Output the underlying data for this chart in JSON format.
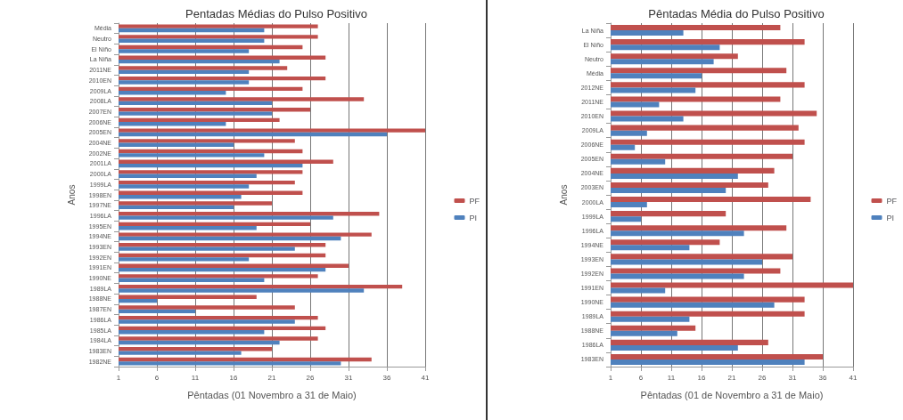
{
  "chart_data": [
    {
      "type": "bar",
      "orientation": "horizontal",
      "title": "Pentadas Médias do Pulso Positivo",
      "xlabel": "Pêntadas (01 Novembro a 31 de Maio)",
      "ylabel": "Anos",
      "grid": "x",
      "legend": "right",
      "xlim": [
        1,
        41
      ],
      "xticks": [
        1,
        6,
        11,
        16,
        21,
        26,
        31,
        36,
        41
      ],
      "categories": [
        "Média",
        "Neutro",
        "El Niño",
        "La Niña",
        "2011NE",
        "2010EN",
        "2009LA",
        "2008LA",
        "2007EN",
        "2006NE",
        "2005EN",
        "2004NE",
        "2002NE",
        "2001LA",
        "2000LA",
        "1999LA",
        "1998EN",
        "1997NE",
        "1996LA",
        "1995EN",
        "1994NE",
        "1993EN",
        "1992EN",
        "1991EN",
        "1990NE",
        "1989LA",
        "1988NE",
        "1987EN",
        "1986LA",
        "1985LA",
        "1984LA",
        "1983EN",
        "1982NE"
      ],
      "series": [
        {
          "name": "PF",
          "color": "#c0504d",
          "values": [
            27,
            27,
            25,
            28,
            23,
            28,
            25,
            33,
            26,
            22,
            41,
            24,
            25,
            29,
            25,
            24,
            25,
            21,
            35,
            26,
            34,
            28,
            28,
            31,
            27,
            38,
            19,
            24,
            27,
            28,
            27,
            21,
            34
          ]
        },
        {
          "name": "PI",
          "color": "#4f81bd",
          "values": [
            20,
            20,
            18,
            22,
            18,
            18,
            15,
            21,
            21,
            15,
            36,
            16,
            20,
            25,
            19,
            18,
            17,
            16,
            29,
            19,
            30,
            24,
            18,
            28,
            20,
            33,
            6,
            11,
            24,
            20,
            22,
            17,
            30
          ]
        }
      ]
    },
    {
      "type": "bar",
      "orientation": "horizontal",
      "title": "Pêntadas Média do Pulso Positivo",
      "xlabel": "Pêntadas (01 de Novembro a 31 de Maio)",
      "ylabel": "Anos",
      "grid": "x",
      "legend": "right",
      "xlim": [
        1,
        41
      ],
      "xticks": [
        1,
        6,
        11,
        16,
        21,
        26,
        31,
        36,
        41
      ],
      "categories": [
        "La Niña",
        "El Niño",
        "Neutro",
        "Média",
        "2012NE",
        "2011NE",
        "2010EN",
        "2009LA",
        "2006NE",
        "2005EN",
        "2004NE",
        "2003EN",
        "2000LA",
        "1999LA",
        "1996LA",
        "1994NE",
        "1993EN",
        "1992EN",
        "1991EN",
        "1990NE",
        "1989LA",
        "1988NE",
        "1986LA",
        "1983EN"
      ],
      "series": [
        {
          "name": "PF",
          "color": "#c0504d",
          "values": [
            29,
            33,
            22,
            30,
            33,
            29,
            35,
            32,
            33,
            31,
            28,
            27,
            34,
            20,
            30,
            19,
            31,
            29,
            41,
            33,
            33,
            15,
            27,
            36
          ]
        },
        {
          "name": "PI",
          "color": "#4f81bd",
          "values": [
            13,
            19,
            18,
            16,
            15,
            9,
            13,
            7,
            5,
            10,
            22,
            20,
            7,
            6,
            23,
            14,
            26,
            23,
            10,
            28,
            14,
            12,
            22,
            33
          ]
        }
      ]
    }
  ]
}
